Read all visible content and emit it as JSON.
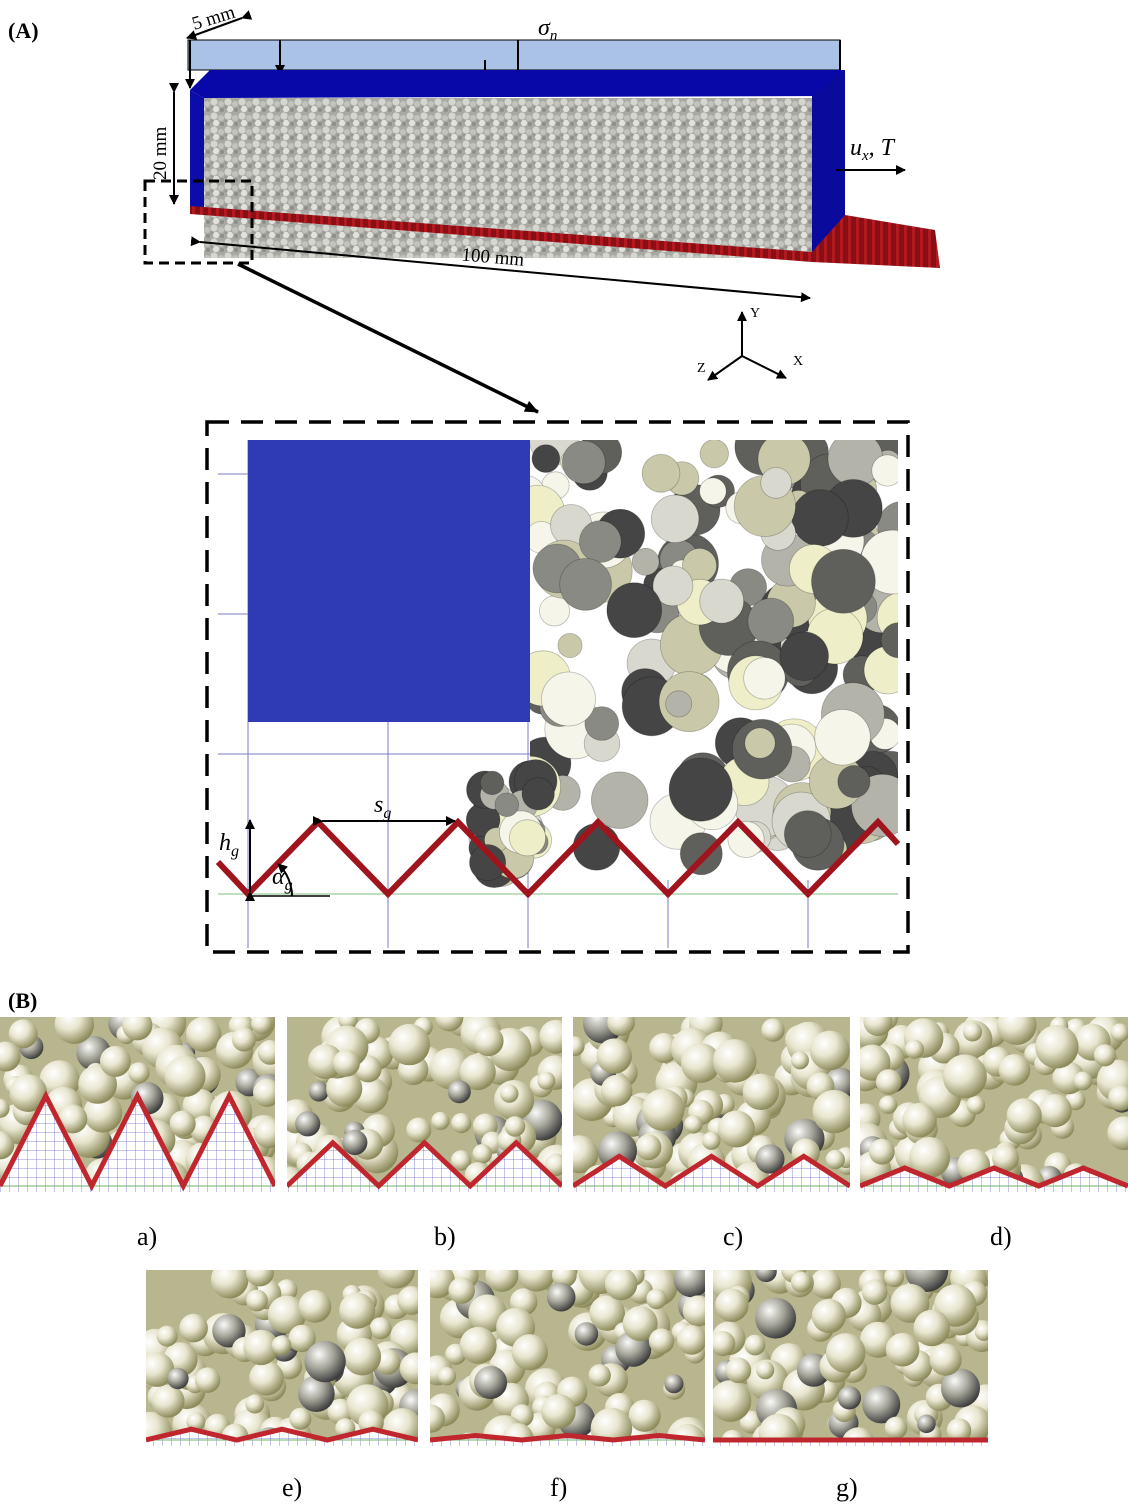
{
  "panels": {
    "a_label": "(A)",
    "b_label": "(B)"
  },
  "model": {
    "width_label": "5 mm",
    "height_label": "20 mm",
    "length_label": "100 mm",
    "normal_stress": "σn",
    "normal_stress_base": "σ",
    "normal_stress_sub": "n",
    "shear_load": "ux, T",
    "shear_load_u": "u",
    "shear_load_sub": "x",
    "shear_load_T": ", T"
  },
  "axes": {
    "y": "Y",
    "x": "X",
    "z": "Z"
  },
  "detail": {
    "spacing_base": "s",
    "spacing_sub": "g",
    "height_base": "h",
    "height_sub": "g",
    "angle_base": "α",
    "angle_sub": "g"
  },
  "roughness_cases": {
    "captions": [
      "a)",
      "b)",
      "c)",
      "d)",
      "e)",
      "f)",
      "g)"
    ],
    "relative_amplitudes": [
      1.0,
      0.48,
      0.33,
      0.2,
      0.12,
      0.05,
      0.0
    ]
  },
  "colors": {
    "platen": "#0a0aa8",
    "platen_detail": "#2e3bb5",
    "asperity": "#a0141e",
    "grid_line": "#5a5ac8",
    "datum_line": "#6fb06f",
    "particle_light": "#f4f3e6",
    "particle_dark": "#3d3d3d"
  }
}
